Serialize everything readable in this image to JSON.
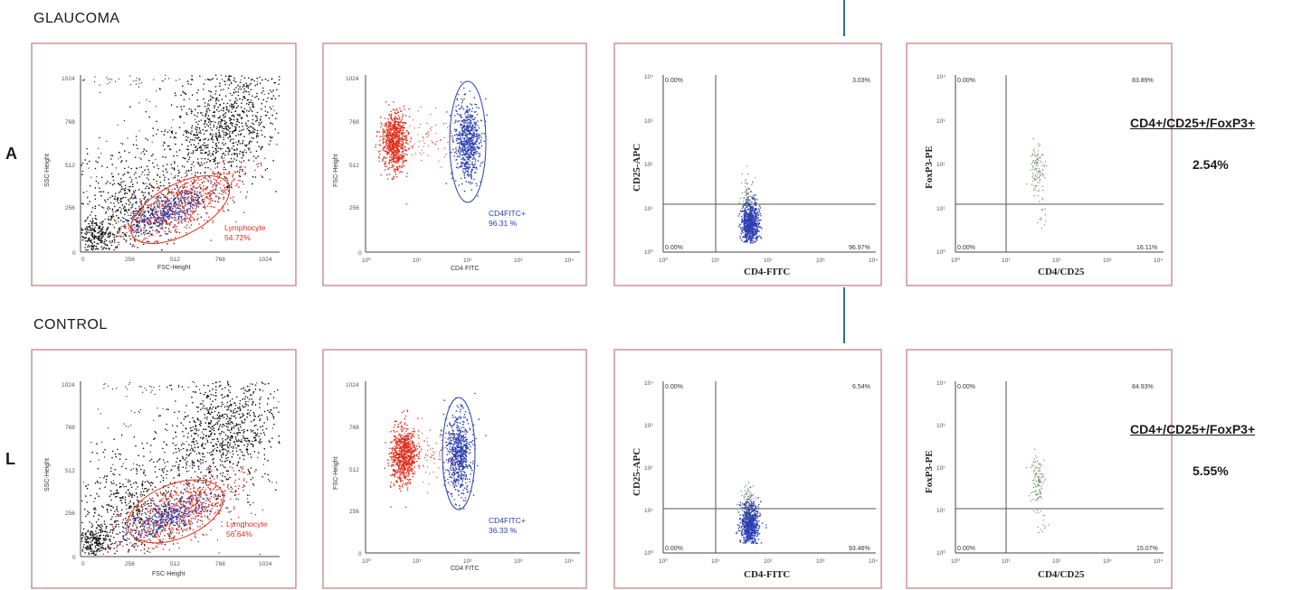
{
  "rows": [
    {
      "label": "GLAUCOMA",
      "edge_letter": "A",
      "side_title": "CD4+/CD25+/FoxP3+",
      "side_value": "2.54%",
      "panels": {
        "scatter": {
          "xlabel": "FSC-Height",
          "ylabel": "SSC-Height",
          "gate_name": "Lymphocyte",
          "gate_pct": "54.72%"
        },
        "cd4": {
          "xlabel": "CD4 FITC",
          "ylabel": "FSC-Height",
          "gate_name": "CD4FITC+",
          "gate_pct": "96.31 %"
        },
        "cd25": {
          "xlabel": "CD4-FITC",
          "ylabel": "CD25-APC",
          "ul": "0.00%",
          "ur": "3.03%",
          "ll": "0.00%",
          "lr": "96.97%"
        },
        "foxp3": {
          "xlabel": "CD4/CD25",
          "ylabel": "FoxP3-PE",
          "ul": "0.00%",
          "ur": "83.89%",
          "ll": "0.00%",
          "lr": "16.11%"
        }
      }
    },
    {
      "label": "CONTROL",
      "edge_letter": "L",
      "side_title": "CD4+/CD25+/FoxP3+",
      "side_value": "5.55%",
      "panels": {
        "scatter": {
          "xlabel": "FSC-Height",
          "ylabel": "SSC-Height",
          "gate_name": "Lymphocyte",
          "gate_pct": "56.64%"
        },
        "cd4": {
          "xlabel": "CD4 FITC",
          "ylabel": "FSC-Height",
          "gate_name": "CD4FITC+",
          "gate_pct": "36.33 %"
        },
        "cd25": {
          "xlabel": "CD4-FITC",
          "ylabel": "CD25-APC",
          "ul": "0.00%",
          "ur": "6.54%",
          "ll": "0.00%",
          "lr": "93.46%"
        },
        "foxp3": {
          "xlabel": "CD4/CD25",
          "ylabel": "FoxP3-PE",
          "ul": "0.00%",
          "ur": "84.93%",
          "ll": "0.00%",
          "lr": "15.07%"
        }
      }
    }
  ],
  "chart_data": [
    {
      "type": "scatter",
      "row": "GLAUCOMA",
      "xlabel": "FSC-Height",
      "ylabel": "SSC-Height",
      "xlim": [
        0,
        1024
      ],
      "ylim": [
        0,
        1024
      ],
      "x_ticks": [
        "0",
        "256",
        "512",
        "768",
        "1024"
      ],
      "y_ticks": [
        "0",
        "256",
        "512",
        "768",
        "1024"
      ],
      "gates": [
        {
          "name": "Lymphocyte",
          "percent": 54.72
        }
      ]
    },
    {
      "type": "scatter",
      "row": "GLAUCOMA",
      "xlabel": "CD4 FITC",
      "ylabel": "FSC-Height",
      "x_scale": "log",
      "x_ticks": [
        "10⁰",
        "10¹",
        "10²",
        "10³",
        "10⁴"
      ],
      "ylim": [
        0,
        1024
      ],
      "y_ticks": [
        "0",
        "256",
        "512",
        "768",
        "1024"
      ],
      "gates": [
        {
          "name": "CD4FITC+",
          "percent": 96.31
        }
      ]
    },
    {
      "type": "scatter",
      "row": "GLAUCOMA",
      "xlabel": "CD4-FITC",
      "ylabel": "CD25-APC",
      "x_scale": "log",
      "y_scale": "log",
      "x_ticks": [
        "10⁰",
        "10¹",
        "10²",
        "10³",
        "10⁴"
      ],
      "y_ticks": [
        "10⁰",
        "10¹",
        "10²",
        "10³",
        "10⁴"
      ],
      "quadrants": {
        "upper_left": 0.0,
        "upper_right": 3.03,
        "lower_left": 0.0,
        "lower_right": 96.97
      }
    },
    {
      "type": "scatter",
      "row": "GLAUCOMA",
      "xlabel": "CD4/CD25",
      "ylabel": "FoxP3-PE",
      "x_scale": "log",
      "y_scale": "log",
      "x_ticks": [
        "10⁰",
        "10¹",
        "10²",
        "10³",
        "10⁴"
      ],
      "y_ticks": [
        "10⁰",
        "10¹",
        "10²",
        "10³",
        "10⁴"
      ],
      "quadrants": {
        "upper_left": 0.0,
        "upper_right": 83.89,
        "lower_left": 0.0,
        "lower_right": 16.11
      }
    },
    {
      "type": "scatter",
      "row": "CONTROL",
      "xlabel": "FSC-Height",
      "ylabel": "SSC-Height",
      "xlim": [
        0,
        1024
      ],
      "ylim": [
        0,
        1024
      ],
      "x_ticks": [
        "0",
        "256",
        "512",
        "768",
        "1024"
      ],
      "y_ticks": [
        "0",
        "256",
        "512",
        "768",
        "1024"
      ],
      "gates": [
        {
          "name": "Lymphocyte",
          "percent": 56.64
        }
      ]
    },
    {
      "type": "scatter",
      "row": "CONTROL",
      "xlabel": "CD4 FITC",
      "ylabel": "FSC-Height",
      "x_scale": "log",
      "x_ticks": [
        "10⁰",
        "10¹",
        "10²",
        "10³",
        "10⁴"
      ],
      "ylim": [
        0,
        1024
      ],
      "y_ticks": [
        "0",
        "256",
        "512",
        "768",
        "1024"
      ],
      "gates": [
        {
          "name": "CD4FITC+",
          "percent": 36.33
        }
      ]
    },
    {
      "type": "scatter",
      "row": "CONTROL",
      "xlabel": "CD4-FITC",
      "ylabel": "CD25-APC",
      "x_scale": "log",
      "y_scale": "log",
      "x_ticks": [
        "10⁰",
        "10¹",
        "10²",
        "10³",
        "10⁴"
      ],
      "y_ticks": [
        "10⁰",
        "10¹",
        "10²",
        "10³",
        "10⁴"
      ],
      "quadrants": {
        "upper_left": 0.0,
        "upper_right": 6.54,
        "lower_left": 0.0,
        "lower_right": 93.46
      }
    },
    {
      "type": "scatter",
      "row": "CONTROL",
      "xlabel": "CD4/CD25",
      "ylabel": "FoxP3-PE",
      "x_scale": "log",
      "y_scale": "log",
      "x_ticks": [
        "10⁰",
        "10¹",
        "10²",
        "10³",
        "10⁴"
      ],
      "y_ticks": [
        "10⁰",
        "10¹",
        "10²",
        "10³",
        "10⁴"
      ],
      "quadrants": {
        "upper_left": 0.0,
        "upper_right": 84.93,
        "lower_left": 0.0,
        "lower_right": 15.07
      }
    }
  ],
  "colors": {
    "frame": "#c98d8d",
    "gated_red": "#e0301e",
    "gated_blue": "#2b3fb0",
    "events_black": "#111111",
    "events_green": "#5a7a50",
    "divider": "#2b6e9e"
  }
}
